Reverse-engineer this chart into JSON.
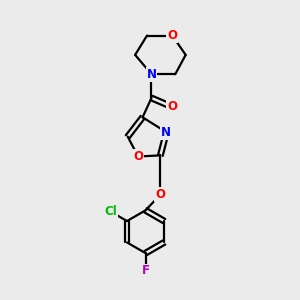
{
  "bg_color": "#ebebeb",
  "bond_color": "#000000",
  "atom_colors": {
    "O": "#ff0000",
    "N": "#0000ff",
    "Cl": "#00bb00",
    "F": "#bb00bb"
  },
  "font_size": 8.5,
  "line_width": 1.6
}
